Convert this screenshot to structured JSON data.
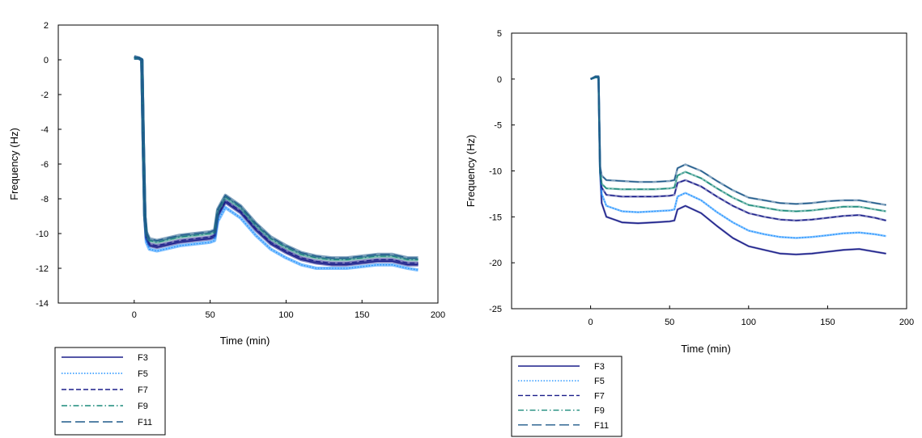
{
  "chart_data": [
    {
      "type": "line",
      "title": "",
      "xlabel": "Time (min)",
      "ylabel": "Frequency (Hz)",
      "xlim": [
        -50,
        200
      ],
      "ylim": [
        -14,
        2
      ],
      "xticks": [
        "0",
        "50",
        "100",
        "150",
        "200"
      ],
      "yticks": [
        "2",
        "0",
        "-2",
        "-4",
        "-6",
        "-8",
        "-10",
        "-12",
        "-14"
      ],
      "grid": false,
      "legend_position": "bottom-left, below plot",
      "series": [
        {
          "name": "F3",
          "color": "#1b1f8a",
          "dash": "solid",
          "x": [
            0,
            3,
            5,
            6,
            7,
            8,
            10,
            15,
            20,
            30,
            40,
            50,
            53,
            55,
            60,
            70,
            80,
            90,
            100,
            110,
            120,
            130,
            140,
            150,
            160,
            170,
            180,
            187
          ],
          "y": [
            0.1,
            0.1,
            0,
            -5,
            -9,
            -10.3,
            -10.7,
            -10.8,
            -10.7,
            -10.5,
            -10.4,
            -10.3,
            -10.2,
            -9,
            -8.2,
            -8.8,
            -9.8,
            -10.6,
            -11.1,
            -11.5,
            -11.7,
            -11.8,
            -11.8,
            -11.7,
            -11.6,
            -11.6,
            -11.8,
            -11.8
          ]
        },
        {
          "name": "F5",
          "color": "#1e90ff",
          "dash": "dotted",
          "x": [
            0,
            3,
            5,
            6,
            7,
            8,
            10,
            15,
            20,
            30,
            40,
            50,
            53,
            55,
            60,
            70,
            80,
            90,
            100,
            110,
            120,
            130,
            140,
            150,
            160,
            170,
            180,
            187
          ],
          "y": [
            0.1,
            0.1,
            0,
            -5,
            -9,
            -10.5,
            -10.9,
            -11.0,
            -10.9,
            -10.7,
            -10.6,
            -10.5,
            -10.4,
            -9.3,
            -8.5,
            -9.1,
            -10.1,
            -10.9,
            -11.4,
            -11.8,
            -12.0,
            -12.0,
            -12.0,
            -11.9,
            -11.8,
            -11.8,
            -12.0,
            -12.1
          ]
        },
        {
          "name": "F7",
          "color": "#1b1f8a",
          "dash": "dashed",
          "x": [
            0,
            3,
            5,
            6,
            7,
            8,
            10,
            15,
            20,
            30,
            40,
            50,
            53,
            55,
            60,
            70,
            80,
            90,
            100,
            110,
            120,
            130,
            140,
            150,
            160,
            170,
            180,
            187
          ],
          "y": [
            0.1,
            0.1,
            0,
            -5,
            -9,
            -10.2,
            -10.6,
            -10.7,
            -10.6,
            -10.4,
            -10.3,
            -10.2,
            -10.1,
            -8.9,
            -8.1,
            -8.7,
            -9.7,
            -10.5,
            -11.0,
            -11.4,
            -11.6,
            -11.7,
            -11.7,
            -11.6,
            -11.5,
            -11.5,
            -11.7,
            -11.7
          ]
        },
        {
          "name": "F9",
          "color": "#1a8a7a",
          "dash": "dash-dot",
          "x": [
            0,
            3,
            5,
            6,
            7,
            8,
            10,
            15,
            20,
            30,
            40,
            50,
            53,
            55,
            60,
            70,
            80,
            90,
            100,
            110,
            120,
            130,
            140,
            150,
            160,
            170,
            180,
            187
          ],
          "y": [
            0.1,
            0.1,
            0,
            -5,
            -9,
            -10.0,
            -10.4,
            -10.5,
            -10.4,
            -10.2,
            -10.1,
            -10.0,
            -9.9,
            -8.7,
            -7.9,
            -8.5,
            -9.5,
            -10.3,
            -10.8,
            -11.2,
            -11.4,
            -11.5,
            -11.5,
            -11.4,
            -11.3,
            -11.3,
            -11.5,
            -11.5
          ]
        },
        {
          "name": "F11",
          "color": "#1f5a8a",
          "dash": "long-dash",
          "x": [
            0,
            3,
            5,
            6,
            7,
            8,
            10,
            15,
            20,
            30,
            40,
            50,
            53,
            55,
            60,
            70,
            80,
            90,
            100,
            110,
            120,
            130,
            140,
            150,
            160,
            170,
            180,
            187
          ],
          "y": [
            0.2,
            0.1,
            0,
            -5,
            -9,
            -9.9,
            -10.3,
            -10.4,
            -10.3,
            -10.1,
            -10.0,
            -9.9,
            -9.8,
            -8.6,
            -7.8,
            -8.4,
            -9.4,
            -10.2,
            -10.7,
            -11.1,
            -11.3,
            -11.4,
            -11.4,
            -11.3,
            -11.2,
            -11.2,
            -11.4,
            -11.4
          ]
        }
      ]
    },
    {
      "type": "line",
      "title": "",
      "xlabel": "Time (min)",
      "ylabel": "Frequency (Hz)",
      "xlim": [
        -50,
        200
      ],
      "ylim": [
        -25,
        5
      ],
      "xticks": [
        "0",
        "50",
        "100",
        "150",
        "200"
      ],
      "yticks": [
        "5",
        "0",
        "-5",
        "-10",
        "-15",
        "-20",
        "-25"
      ],
      "grid": false,
      "legend_position": "bottom-left, below plot",
      "series": [
        {
          "name": "F3",
          "color": "#1b1f8a",
          "dash": "solid",
          "x": [
            0,
            3,
            5,
            6,
            7,
            10,
            20,
            30,
            40,
            50,
            53,
            55,
            60,
            70,
            80,
            90,
            100,
            110,
            120,
            130,
            140,
            150,
            160,
            170,
            180,
            187
          ],
          "y": [
            0,
            0.2,
            0.2,
            -10,
            -13.5,
            -15,
            -15.6,
            -15.7,
            -15.6,
            -15.5,
            -15.4,
            -14.2,
            -13.8,
            -14.6,
            -16.0,
            -17.3,
            -18.2,
            -18.6,
            -19.0,
            -19.1,
            -19.0,
            -18.8,
            -18.6,
            -18.5,
            -18.8,
            -19.0
          ]
        },
        {
          "name": "F5",
          "color": "#1e90ff",
          "dash": "dotted",
          "x": [
            0,
            3,
            5,
            6,
            7,
            10,
            20,
            30,
            40,
            50,
            53,
            55,
            60,
            70,
            80,
            90,
            100,
            110,
            120,
            130,
            140,
            150,
            160,
            170,
            180,
            187
          ],
          "y": [
            0,
            0.2,
            0.2,
            -10,
            -12.5,
            -13.8,
            -14.4,
            -14.5,
            -14.4,
            -14.3,
            -14.2,
            -12.8,
            -12.4,
            -13.2,
            -14.5,
            -15.6,
            -16.5,
            -16.9,
            -17.2,
            -17.3,
            -17.2,
            -17.0,
            -16.8,
            -16.7,
            -16.9,
            -17.1
          ]
        },
        {
          "name": "F7",
          "color": "#1b1f8a",
          "dash": "dashed",
          "x": [
            0,
            3,
            5,
            6,
            7,
            10,
            20,
            30,
            40,
            50,
            53,
            55,
            60,
            70,
            80,
            90,
            100,
            110,
            120,
            130,
            140,
            150,
            160,
            170,
            180,
            187
          ],
          "y": [
            0,
            0.2,
            0.2,
            -10,
            -11.8,
            -12.6,
            -12.8,
            -12.8,
            -12.8,
            -12.7,
            -12.6,
            -11.3,
            -11.0,
            -11.7,
            -12.8,
            -13.8,
            -14.6,
            -15.0,
            -15.3,
            -15.4,
            -15.3,
            -15.1,
            -14.9,
            -14.8,
            -15.1,
            -15.4
          ]
        },
        {
          "name": "F9",
          "color": "#1a8a7a",
          "dash": "dash-dot",
          "x": [
            0,
            3,
            5,
            6,
            7,
            10,
            20,
            30,
            40,
            50,
            53,
            55,
            60,
            70,
            80,
            90,
            100,
            110,
            120,
            130,
            140,
            150,
            160,
            170,
            180,
            187
          ],
          "y": [
            0,
            0.2,
            0.2,
            -10,
            -11.4,
            -11.9,
            -12.0,
            -12.0,
            -12.0,
            -11.9,
            -11.8,
            -10.5,
            -10.1,
            -10.8,
            -11.9,
            -12.9,
            -13.7,
            -14.0,
            -14.3,
            -14.4,
            -14.3,
            -14.1,
            -13.9,
            -13.9,
            -14.2,
            -14.4
          ]
        },
        {
          "name": "F11",
          "color": "#1f5a8a",
          "dash": "long-dash",
          "x": [
            0,
            3,
            5,
            6,
            7,
            10,
            20,
            30,
            40,
            50,
            53,
            55,
            60,
            70,
            80,
            90,
            100,
            110,
            120,
            130,
            140,
            150,
            160,
            170,
            180,
            187
          ],
          "y": [
            0,
            0.3,
            0.3,
            -9.5,
            -10.5,
            -11.0,
            -11.1,
            -11.2,
            -11.2,
            -11.1,
            -11.0,
            -9.7,
            -9.3,
            -10.0,
            -11.1,
            -12.1,
            -12.9,
            -13.2,
            -13.5,
            -13.6,
            -13.5,
            -13.3,
            -13.2,
            -13.2,
            -13.5,
            -13.7
          ]
        }
      ]
    }
  ]
}
